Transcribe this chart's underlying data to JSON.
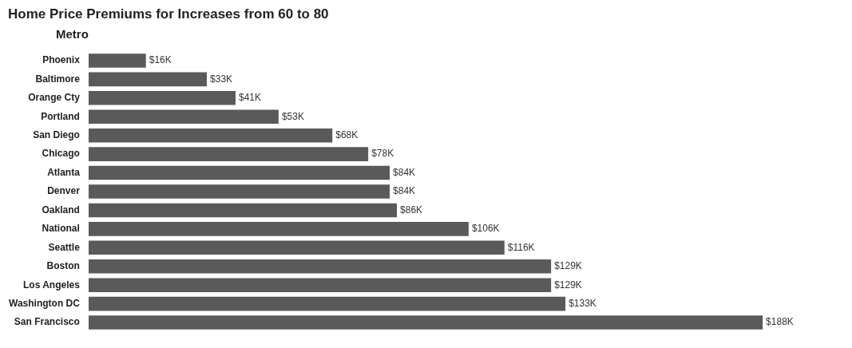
{
  "chart_data": {
    "type": "bar",
    "orientation": "horizontal",
    "title": "Home Price Premiums for Increases from 60 to 80",
    "ylabel": "Metro",
    "categories": [
      "Phoenix",
      "Baltimore",
      "Orange Cty",
      "Portland",
      "San Diego",
      "Chicago",
      "Atlanta",
      "Denver",
      "Oakland",
      "National",
      "Seattle",
      "Boston",
      "Los Angeles",
      "Washington DC",
      "San Francisco"
    ],
    "values": [
      16,
      33,
      41,
      53,
      68,
      78,
      84,
      84,
      86,
      106,
      116,
      129,
      129,
      133,
      188
    ],
    "value_labels": [
      "$16K",
      "$33K",
      "$41K",
      "$53K",
      "$68K",
      "$78K",
      "$84K",
      "$84K",
      "$86K",
      "$106K",
      "$116K",
      "$129K",
      "$129K",
      "$133K",
      "$188K"
    ],
    "color": "#5a5a5a"
  }
}
